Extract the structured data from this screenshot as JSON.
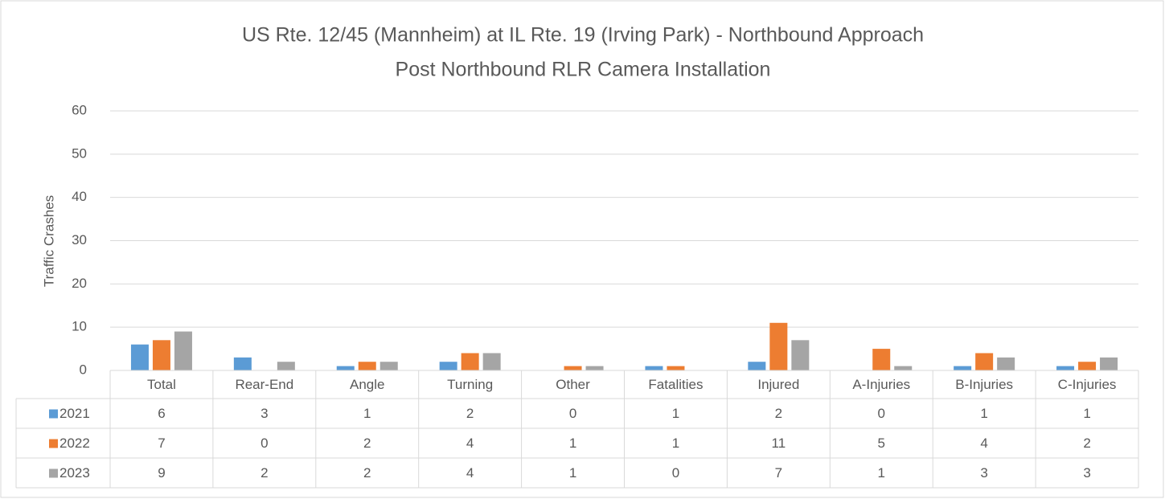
{
  "chart_data": {
    "type": "bar",
    "title": "US Rte. 12/45 (Mannheim) at IL Rte. 19 (Irving Park) - Northbound Approach",
    "subtitle": "Post Northbound RLR Camera Installation",
    "y_label": "Traffic Crashes",
    "categories": [
      "Total",
      "Rear-End",
      "Angle",
      "Turning",
      "Other",
      "Fatalities",
      "Injured",
      "A-Injuries",
      "B-Injuries",
      "C-Injuries"
    ],
    "series": [
      {
        "name": "2021",
        "color": "#5b9bd5",
        "values": [
          6,
          3,
          1,
          2,
          0,
          1,
          2,
          0,
          1,
          1
        ]
      },
      {
        "name": "2022",
        "color": "#ed7d31",
        "values": [
          7,
          0,
          2,
          4,
          1,
          1,
          11,
          5,
          4,
          2
        ]
      },
      {
        "name": "2023",
        "color": "#a5a5a5",
        "values": [
          9,
          2,
          2,
          4,
          1,
          0,
          7,
          1,
          3,
          3
        ]
      }
    ],
    "ylim": [
      0,
      60
    ],
    "yticks": [
      0,
      10,
      20,
      30,
      40,
      50,
      60
    ],
    "grid": true,
    "data_table": true
  }
}
